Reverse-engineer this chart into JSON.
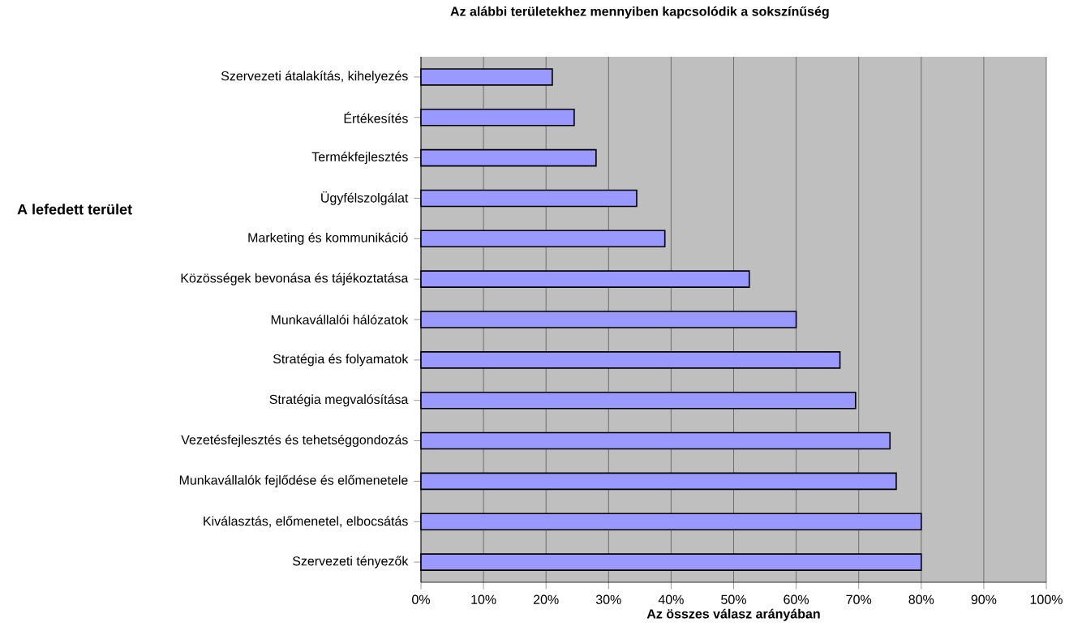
{
  "chart_data": {
    "type": "bar",
    "orientation": "horizontal",
    "title": "Az alábbi területekhez mennyiben kapcsolódik a sokszínűség",
    "xlabel": "Az összes válasz arányában",
    "ylabel": "A lefedett terület",
    "categories": [
      "Szervezeti átalakítás, kihelyezés",
      "Értékesítés",
      "Termékfejlesztés",
      "Ügyfélszolgálat",
      "Marketing és kommunikáció",
      "Közösségek bevonása és tájékoztatása",
      "Munkavállalói hálózatok",
      "Stratégia és folyamatok",
      "Stratégia megvalósítása",
      "Vezetésfejlesztés és tehetséggondozás",
      "Munkavállalók fejlődése és előmenetele",
      "Kiválasztás, előmenetel, elbocsátás",
      "Szervezeti tényezők"
    ],
    "values": [
      21,
      24.5,
      28,
      34.5,
      39,
      52.5,
      60,
      67,
      69.5,
      75,
      76,
      80,
      80
    ],
    "color": "#9999ff",
    "xlim": [
      0,
      100
    ],
    "xticks": [
      {
        "value": 0,
        "label": "0%"
      },
      {
        "value": 10,
        "label": "10%"
      },
      {
        "value": 20,
        "label": "20%"
      },
      {
        "value": 30,
        "label": "30%"
      },
      {
        "value": 40,
        "label": "40%"
      },
      {
        "value": 50,
        "label": "50%"
      },
      {
        "value": 60,
        "label": "60%"
      },
      {
        "value": 70,
        "label": "70%"
      },
      {
        "value": 80,
        "label": "80%"
      },
      {
        "value": 90,
        "label": "90%"
      },
      {
        "value": 100,
        "label": "100%"
      }
    ],
    "grid": "x"
  }
}
